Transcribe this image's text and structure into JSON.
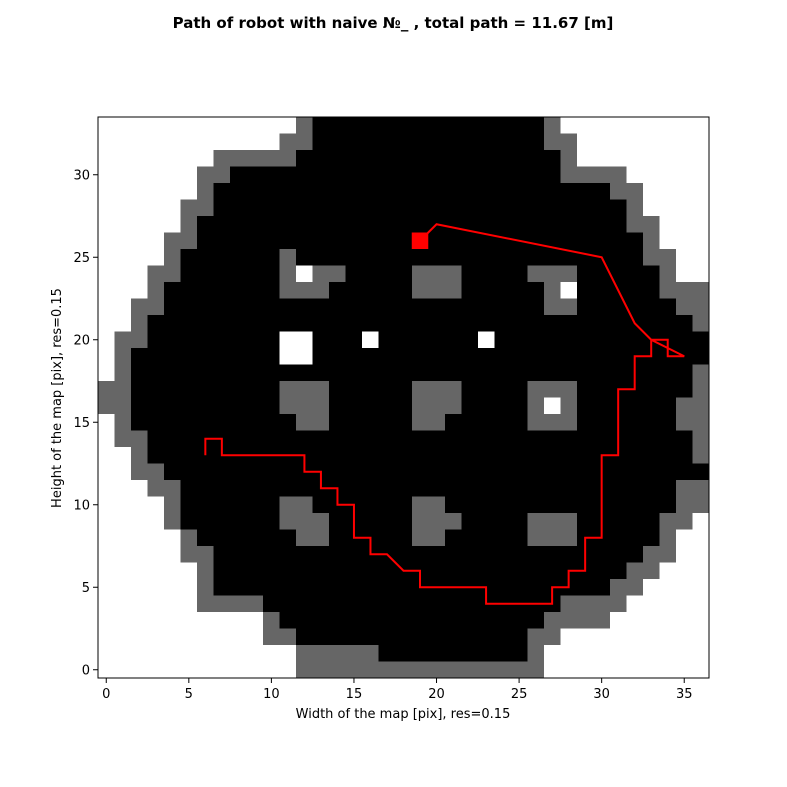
{
  "chart_data": {
    "type": "heatmap",
    "title": "Path of robot with naive №_ , total path = 11.67 [m]",
    "xlabel": "Width of the map [pix], res=0.15",
    "ylabel": "Height of the map [pix], res=0.15",
    "xlim": [
      -0.5,
      36.5
    ],
    "ylim": [
      -0.5,
      33.5
    ],
    "xticks": [
      0,
      5,
      10,
      15,
      20,
      25,
      30,
      35
    ],
    "yticks": [
      0,
      5,
      10,
      15,
      20,
      25,
      30
    ],
    "grid": false,
    "colors": {
      "free": "#000000",
      "inflated": "#666666",
      "unknown": "#ffffff",
      "path": "#ff0000",
      "robot": "#ff0000"
    },
    "grid_width": 37,
    "grid_height": 34,
    "map_rows_top_to_bottom": [
      "WWWWWWWWWWWWFBBBBBBBBBBBBBBFWWWWWWWWW",
      "WWWWWWWWWWWFFBBBBBBBBBBBBBBFFWWWWWWWW",
      "WWWWWWWFFFFFBBBBBBBBBBBBBBBBFWWWWWWWW",
      "WWWWWWFFBBBBBBBBBBBBBBBBBBBBFFFFWWWWW",
      "WWWWWWFBBBBBBBBBBBBBBBBBBBBBBBBFFWWWW",
      "WWWWWFFBBBBBBBBBBBBBBBBBBBBBBBBBFWWWW",
      "WWWWWFBBBBBBBBBBBBBBBBBBBBBBBBBBFFWWW",
      "WWWWFFBBBBBBBBBBBBBBBBBBBBBBBBBBBFWWW",
      "WWWWFBBBBBBFBBBBBBBBBBBBBBBBBBBBBFFWW",
      "WWWFFBBBBBBFWFFBBBBFFFBBBBFFFBBBBBFWW",
      "WWWFBBBBBBBFFFBBBBBFFFBBBBBFWBBBBBFFF",
      "WWFFBBBBBBBBBBBBBBBBBBBBBBBFFBBBBBBFF",
      "WWFBBBBBBBBBBBBBBBBBBBBBBBBBBBBBBBBBF",
      "WFFBBBBBBBBWWBBBWBBBBBBWBBBBBBBBBBBBB",
      "WFBBBBBBBBBWWBBBBBBBBBBBBBBBBBBBBBBBB",
      "WFBBBBBBBBBBBBBBBBBBBBBBBBBBBBBBBBBBF",
      "FFBBBBBBBBBFFFBBBBBFFFBBBBFFFBBBBBBBF",
      "FFBBBBBBBBBFFFBBBBBFFFBBBBFWFBBBBBBFF",
      "WFBBBBBBBBBBFFBBBBBFFBBBBBFFFBBBBBBFF",
      "WFFBBBBBBBBBBBBBBBBBBBBBBBBBBBBBBBBBF",
      "WWFBBBBBBBBBBBBBBBBBBBBBBBBBBBBBBBBBF",
      "WWFFBBBBBBBBBBBBBBBBBBBBBBBBBBBBBBBBB",
      "WWWFFBBBBBBBBBBBBBBBBBBBBBBBBBBBBBBFF",
      "WWWWFBBBBBBFFBBBBBBFFBBBBBBBBBBBBBBFF",
      "WWWWFBBBBBBFFFBBBBBFFFBBBBFFFBBBBBFFW",
      "WWWWWFBBBBBBFFBBBBBFFBBBBBFFFBBBBBFWW",
      "WWWWWFFBBBBBBBBBBBBBBBBBBBBBBBBBBFFWW",
      "WWWWWWFBBBBBBBBBBBBBBBBBBBBBBBBBFFWWW",
      "WWWWWWFBBBBBBBBBBBBBBBBBBBBBBBBFFWWWW",
      "WWWWWWFFFFBBBBBBBBBBBBBBBBBBFFFFWWWWW",
      "WWWWWWWWWWFBBBBBBBBBBBBBBBBFFFFWWWWWW",
      "WWWWWWWWWWFFBBBBBBBBBBBBBBFFWWWWWWWWW",
      "WWWWWWWWWWWWFFFFFBBBBBBBBBFWWWWWWWWWW",
      "WWWWWWWWWWWWFFFFFFFFFFFFFFFWWWWWWWWWW"
    ],
    "path": {
      "x": [
        6,
        6,
        7,
        7,
        12,
        12,
        13,
        13,
        14,
        14,
        15,
        15,
        16,
        16,
        17,
        18,
        19,
        19,
        23,
        23,
        27,
        27,
        28,
        28,
        29,
        29,
        30,
        30,
        31,
        31,
        32,
        32,
        33,
        33,
        34,
        34,
        35,
        33,
        33,
        32,
        32,
        31,
        31,
        30,
        30,
        20,
        20,
        19
      ],
      "y": [
        13,
        14,
        14,
        13,
        13,
        12,
        12,
        11,
        11,
        10,
        10,
        8,
        8,
        7,
        7,
        6,
        6,
        5,
        5,
        4,
        4,
        5,
        5,
        6,
        6,
        8,
        8,
        13,
        13,
        17,
        17,
        19,
        19,
        20,
        20,
        19,
        19,
        20,
        20,
        21,
        21,
        23,
        23,
        25,
        25,
        27,
        27,
        26
      ]
    },
    "robot_position": {
      "x": 19,
      "y": 26
    }
  }
}
